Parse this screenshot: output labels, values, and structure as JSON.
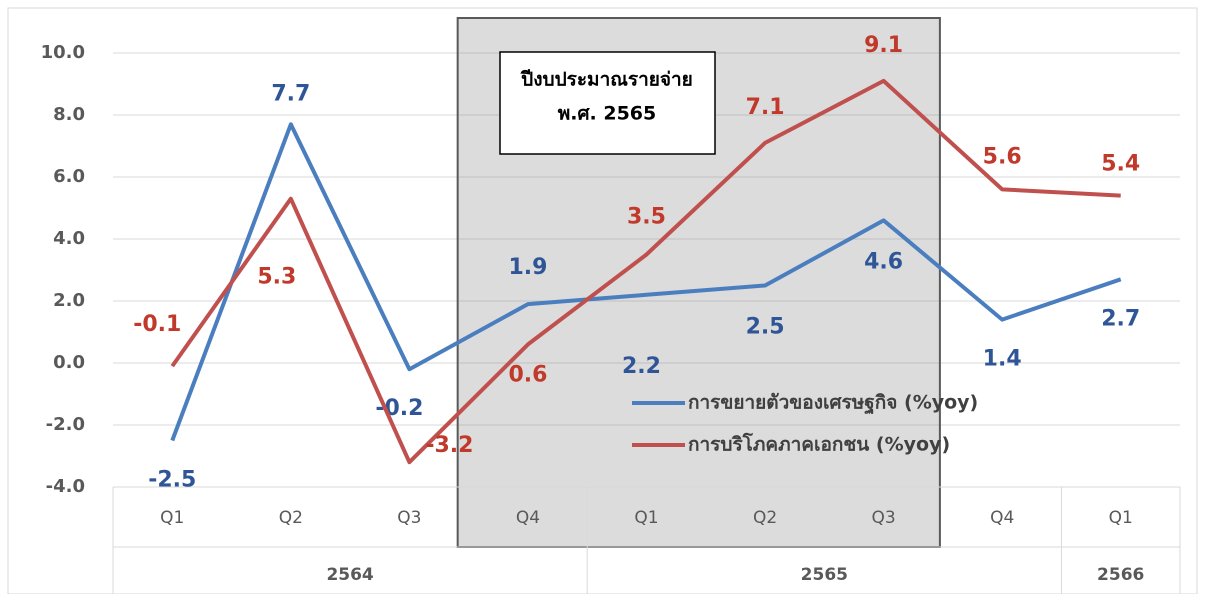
{
  "chart_data": {
    "type": "line",
    "categories": [
      "Q1",
      "Q2",
      "Q3",
      "Q4",
      "Q1",
      "Q2",
      "Q3",
      "Q4",
      "Q1"
    ],
    "groups": [
      {
        "label": "2564",
        "count": 4
      },
      {
        "label": "2565",
        "count": 4
      },
      {
        "label": "2566",
        "count": 1
      }
    ],
    "series": [
      {
        "name": "การขยายตัวของเศรษฐกิจ (%yoy)",
        "color": "#4a7ebf",
        "values": [
          -2.5,
          7.7,
          -0.2,
          1.9,
          2.2,
          2.5,
          4.6,
          1.4,
          2.7
        ]
      },
      {
        "name": "การบริโภคภาคเอกชน (%yoy)",
        "color": "#c0504d",
        "values": [
          -0.1,
          5.3,
          -3.2,
          0.6,
          3.5,
          7.1,
          9.1,
          5.6,
          5.4
        ]
      }
    ],
    "ylim": [
      -4,
      10
    ],
    "yticks": [
      {
        "value": -4,
        "label": "-4.0"
      },
      {
        "value": -2,
        "label": "-2.0"
      },
      {
        "value": 0,
        "label": "0.0"
      },
      {
        "value": 2,
        "label": "2.0"
      },
      {
        "value": 4,
        "label": "4.0"
      },
      {
        "value": 6,
        "label": "6.0"
      },
      {
        "value": 8,
        "label": "8.0"
      },
      {
        "value": 10,
        "label": "10.0"
      }
    ],
    "grid": true,
    "shaded_range": [
      3,
      6
    ],
    "annotation": [
      "ปีงบประมาณรายจ่าย",
      "พ.ศ. 2565"
    ]
  }
}
